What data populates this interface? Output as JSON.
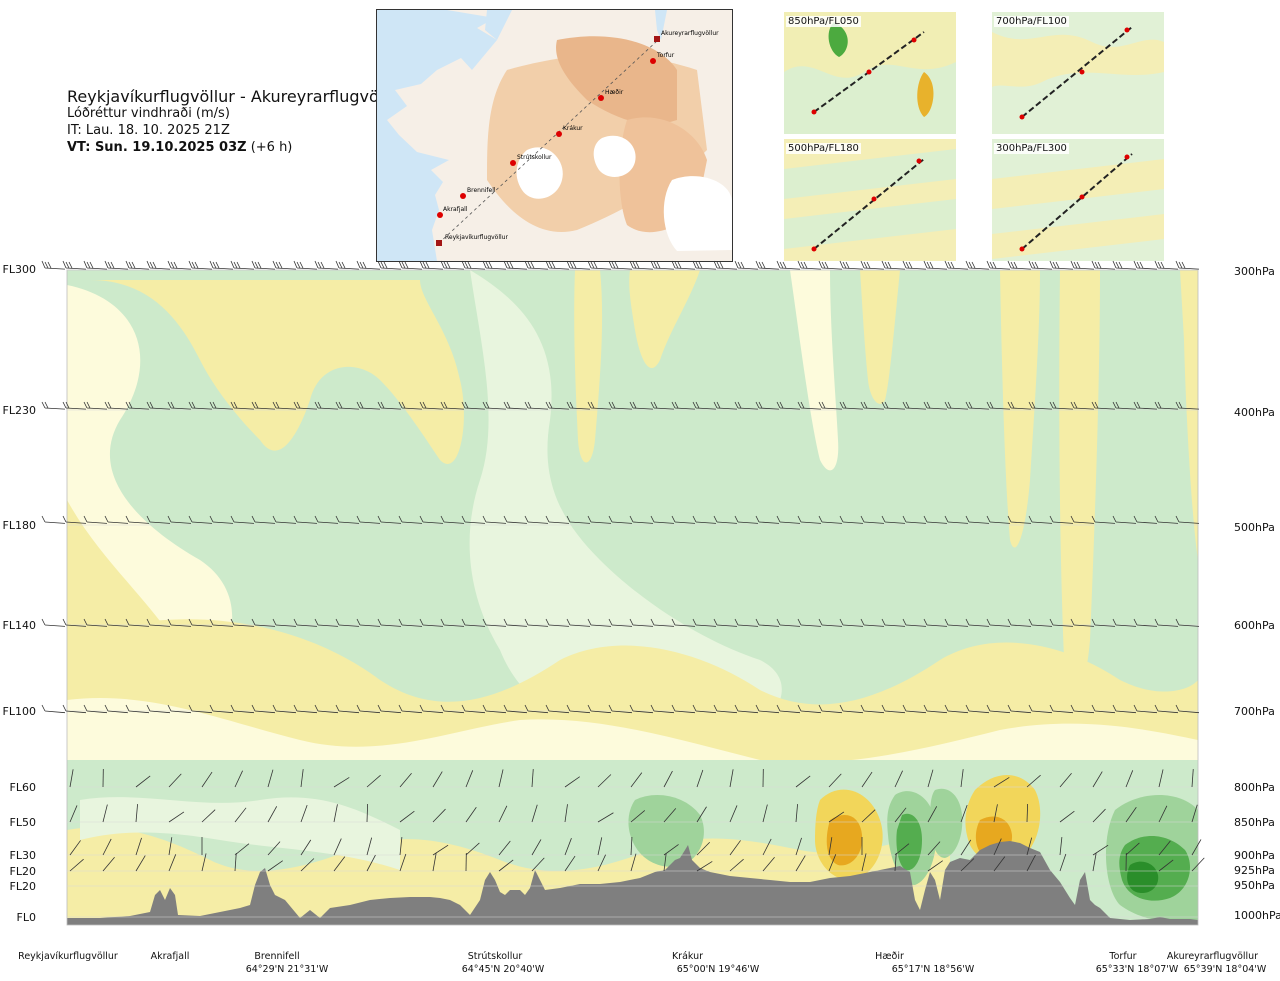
{
  "header": {
    "route": "Reykjavíkurflugvöllur - Akureyrarflugvöllur",
    "product": "Lóðréttur vindhraði (m/s)",
    "init_time": "IT: Lau. 18. 10. 2025 21Z",
    "valid_prefix": "VT: Sun. 19.10.2025 03Z",
    "valid_suffix": " (+6 h)"
  },
  "map": {
    "stations": [
      "Akureyrarflugvöllur",
      "Torfur",
      "Hæðir",
      "Krákur",
      "Strútskollur",
      "Brennifell",
      "Akrafjall",
      "Reykjavíkurflugvöllur"
    ]
  },
  "thumbnails": [
    {
      "label": "850hPa/FL050"
    },
    {
      "label": "700hPa/FL100"
    },
    {
      "label": "500hPa/FL180"
    },
    {
      "label": "300hPa/FL300"
    }
  ],
  "chart_data": {
    "type": "heatmap",
    "title": "Lóðréttur vindhraði (m/s)",
    "left_axis_labels": [
      "FL300",
      "FL230",
      "FL180",
      "FL140",
      "FL100",
      "FL60",
      "FL50",
      "FL30",
      "FL20",
      "FL20",
      "FL0"
    ],
    "right_axis_labels": [
      "300hPa",
      "400hPa",
      "500hPa",
      "600hPa",
      "700hPa",
      "800hPa",
      "850hPa",
      "900hPa",
      "925hPa",
      "950hPa",
      "1000hPa"
    ],
    "pressure_levels_hPa": [
      300,
      400,
      500,
      600,
      700,
      800,
      850,
      900,
      925,
      950,
      1000
    ],
    "locations": [
      {
        "name": "Reykjavíkurflugvöllur",
        "coord": ""
      },
      {
        "name": "Akrafjall",
        "coord": ""
      },
      {
        "name": "Brennifell",
        "coord": "64°29'N 21°31'W"
      },
      {
        "name": "Strútskollur",
        "coord": "64°45'N 20°40'W"
      },
      {
        "name": "Krákur",
        "coord": "65°00'N 19°46'W"
      },
      {
        "name": "Hæðir",
        "coord": "65°17'N 18°56'W"
      },
      {
        "name": "Torfur",
        "coord": "65°33'N 18°07'W"
      },
      {
        "name": "Akureyrarflugvöllur",
        "coord": "65°39'N 18°04'W"
      }
    ],
    "colors": {
      "yellow_light": "#f5eda6",
      "cream": "#fdfbdc",
      "green_pale": "#e8f5de",
      "green_light": "#cdeacb",
      "green_mid": "#9fd39b",
      "green_dark": "#54ad4f",
      "green_deep": "#2a8e2a",
      "yellow_mid": "#f2d65a",
      "orange": "#e7a81f",
      "terrain": "#7f7f7f"
    },
    "grid": true,
    "legend": "none"
  }
}
